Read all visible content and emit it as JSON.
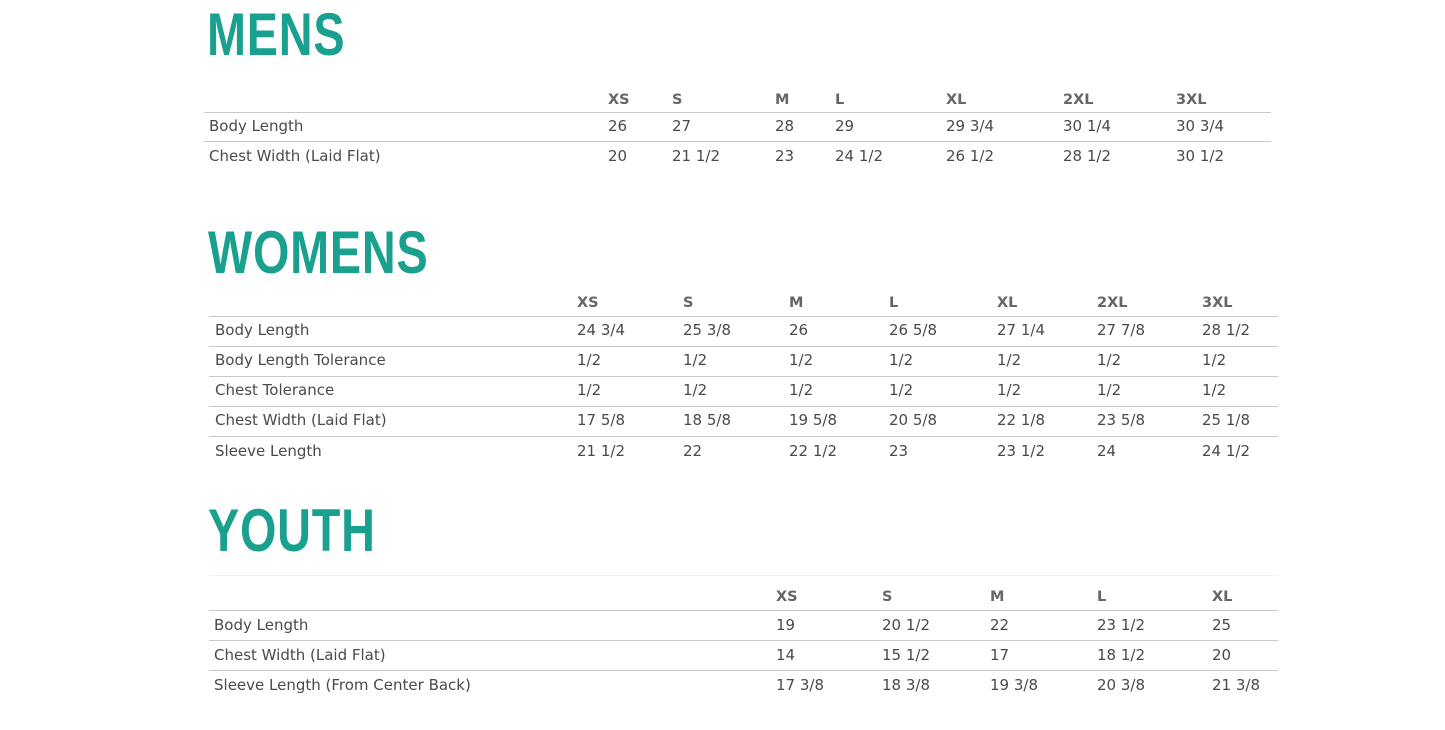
{
  "sections": [
    {
      "title": "MENS",
      "sizes": [
        "XS",
        "S",
        "M",
        "L",
        "XL",
        "2XL",
        "3XL"
      ],
      "rows": [
        {
          "label": "Body Length",
          "values": [
            "26",
            "27",
            "28",
            "29",
            "29 3/4",
            "30 1/4",
            "30 3/4"
          ]
        },
        {
          "label": "Chest Width (Laid Flat)",
          "values": [
            "20",
            "21 1/2",
            "23",
            "24 1/2",
            "26 1/2",
            "28 1/2",
            "30 1/2"
          ]
        }
      ]
    },
    {
      "title": "WOMENS",
      "sizes": [
        "XS",
        "S",
        "M",
        "L",
        "XL",
        "2XL",
        "3XL"
      ],
      "rows": [
        {
          "label": "Body Length",
          "values": [
            "24 3/4",
            "25 3/8",
            "26",
            "26 5/8",
            "27 1/4",
            "27 7/8",
            "28 1/2"
          ]
        },
        {
          "label": "Body Length Tolerance",
          "values": [
            "1/2",
            "1/2",
            "1/2",
            "1/2",
            "1/2",
            "1/2",
            "1/2"
          ]
        },
        {
          "label": "Chest Tolerance",
          "values": [
            "1/2",
            "1/2",
            "1/2",
            "1/2",
            "1/2",
            "1/2",
            "1/2"
          ]
        },
        {
          "label": "Chest Width (Laid Flat)",
          "values": [
            "17 5/8",
            "18 5/8",
            "19 5/8",
            "20 5/8",
            "22 1/8",
            "23 5/8",
            "25 1/8"
          ]
        },
        {
          "label": "Sleeve Length",
          "values": [
            "21 1/2",
            "22",
            "22 1/2",
            "23",
            "23 1/2",
            "24",
            "24 1/2"
          ]
        }
      ]
    },
    {
      "title": "YOUTH",
      "sizes": [
        "XS",
        "S",
        "M",
        "L",
        "XL"
      ],
      "rows": [
        {
          "label": "Body Length",
          "values": [
            "19",
            "20 1/2",
            "22",
            "23 1/2",
            "25"
          ]
        },
        {
          "label": "Chest Width (Laid Flat)",
          "values": [
            "14",
            "15 1/2",
            "17",
            "18 1/2",
            "20"
          ]
        },
        {
          "label": "Sleeve Length (From Center Back)",
          "values": [
            "17 3/8",
            "18 3/8",
            "19 3/8",
            "20 3/8",
            "21 3/8"
          ]
        }
      ]
    }
  ],
  "colors": {
    "title": "#1aa08e",
    "rule": "#c8c8c8"
  }
}
